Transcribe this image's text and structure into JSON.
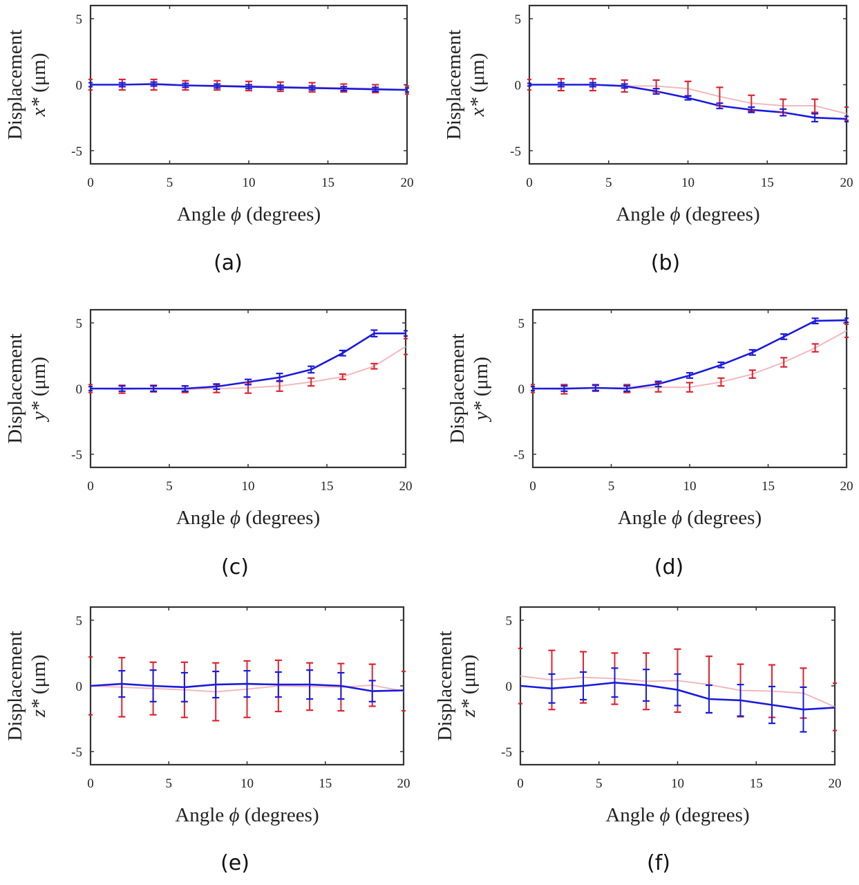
{
  "figure": {
    "colors": {
      "blue": "#1a1adb",
      "red": "#e0222e",
      "red_line": "#f2b8bc",
      "axis": "#333333"
    }
  },
  "chart_data": [
    {
      "type": "line",
      "panel_label": "(a)",
      "ylabel_top": "Displacement",
      "ylabel_var": "x*",
      "ylabel_unit": " (μm)",
      "xlabel_pre": "Angle ",
      "xlabel_sym": "ϕ",
      "xlabel_post": " (degrees)",
      "xlim": [
        0,
        20
      ],
      "ylim": [
        -6,
        6
      ],
      "xticks": [
        0,
        5,
        10,
        15,
        20
      ],
      "yticks": [
        -5,
        0,
        5
      ],
      "x": [
        0,
        2,
        4,
        6,
        8,
        10,
        12,
        14,
        16,
        18,
        20
      ],
      "series": [
        {
          "name": "blue",
          "values": [
            0,
            0,
            0.05,
            -0.05,
            -0.1,
            -0.15,
            -0.2,
            -0.25,
            -0.3,
            -0.35,
            -0.4
          ],
          "err": [
            0.15,
            0.15,
            0.15,
            0.15,
            0.15,
            0.15,
            0.15,
            0.15,
            0.15,
            0.15,
            0.15
          ]
        },
        {
          "name": "red",
          "values": [
            0,
            0,
            0,
            -0.05,
            -0.05,
            -0.1,
            -0.15,
            -0.2,
            -0.25,
            -0.3,
            -0.4
          ],
          "err": [
            0.4,
            0.4,
            0.4,
            0.35,
            0.35,
            0.35,
            0.35,
            0.35,
            0.3,
            0.3,
            0.3
          ]
        }
      ]
    },
    {
      "type": "line",
      "panel_label": "(b)",
      "ylabel_top": "Displacement",
      "ylabel_var": "x*",
      "ylabel_unit": " (μm)",
      "xlabel_pre": "Angle ",
      "xlabel_sym": "ϕ",
      "xlabel_post": " (degrees)",
      "xlim": [
        0,
        20
      ],
      "ylim": [
        -6,
        6
      ],
      "xticks": [
        0,
        5,
        10,
        15,
        20
      ],
      "yticks": [
        -5,
        0,
        5
      ],
      "x": [
        0,
        2,
        4,
        6,
        8,
        10,
        12,
        14,
        16,
        18,
        20
      ],
      "series": [
        {
          "name": "blue",
          "values": [
            0,
            0,
            0,
            -0.1,
            -0.5,
            -1.0,
            -1.6,
            -1.9,
            -2.1,
            -2.5,
            -2.6
          ],
          "err": [
            0.1,
            0.15,
            0.15,
            0.15,
            0.2,
            0.15,
            0.2,
            0.2,
            0.25,
            0.3,
            0.2
          ]
        },
        {
          "name": "red",
          "values": [
            0,
            0,
            0,
            -0.1,
            -0.1,
            -0.3,
            -0.9,
            -1.4,
            -1.6,
            -1.6,
            -2.2
          ],
          "err": [
            0.4,
            0.45,
            0.45,
            0.45,
            0.45,
            0.55,
            0.7,
            0.6,
            0.5,
            0.5,
            0.5
          ]
        }
      ]
    },
    {
      "type": "line",
      "panel_label": "(c)",
      "ylabel_top": "Displacement",
      "ylabel_var": "y*",
      "ylabel_unit": " (μm)",
      "xlabel_pre": "Angle ",
      "xlabel_sym": "ϕ",
      "xlabel_post": " (degrees)",
      "xlim": [
        0,
        20
      ],
      "ylim": [
        -6,
        6
      ],
      "xticks": [
        0,
        5,
        10,
        15,
        20
      ],
      "yticks": [
        -5,
        0,
        5
      ],
      "x": [
        0,
        2,
        4,
        6,
        8,
        10,
        12,
        14,
        16,
        18,
        20
      ],
      "series": [
        {
          "name": "blue",
          "values": [
            0,
            0,
            0,
            0,
            0.15,
            0.5,
            0.85,
            1.45,
            2.7,
            4.2,
            4.2
          ],
          "err": [
            0.15,
            0.2,
            0.2,
            0.2,
            0.2,
            0.2,
            0.3,
            0.25,
            0.2,
            0.25,
            0.2
          ]
        },
        {
          "name": "red",
          "values": [
            0,
            -0.05,
            0,
            -0.05,
            0,
            0.05,
            0.2,
            0.5,
            0.9,
            1.7,
            3.2
          ],
          "err": [
            0.3,
            0.3,
            0.25,
            0.25,
            0.3,
            0.4,
            0.4,
            0.3,
            0.2,
            0.2,
            0.6
          ]
        }
      ]
    },
    {
      "type": "line",
      "panel_label": "(d)",
      "ylabel_top": "Displacement",
      "ylabel_var": "y*",
      "ylabel_unit": " (μm)",
      "xlabel_pre": "Angle ",
      "xlabel_sym": "ϕ",
      "xlabel_post": " (degrees)",
      "xlim": [
        0,
        20
      ],
      "ylim": [
        -6,
        6
      ],
      "xticks": [
        0,
        5,
        10,
        15,
        20
      ],
      "yticks": [
        -5,
        0,
        5
      ],
      "x": [
        0,
        2,
        4,
        6,
        8,
        10,
        12,
        14,
        16,
        18,
        20
      ],
      "series": [
        {
          "name": "blue",
          "values": [
            0,
            0,
            0.05,
            0,
            0.35,
            1.0,
            1.8,
            2.75,
            3.95,
            5.15,
            5.2
          ],
          "err": [
            0.15,
            0.2,
            0.2,
            0.2,
            0.2,
            0.2,
            0.2,
            0.2,
            0.2,
            0.2,
            0.15
          ]
        },
        {
          "name": "red",
          "values": [
            0,
            -0.05,
            0.05,
            0,
            0.1,
            0.1,
            0.5,
            1.1,
            2.0,
            3.1,
            4.4
          ],
          "err": [
            0.3,
            0.35,
            0.25,
            0.3,
            0.35,
            0.35,
            0.3,
            0.3,
            0.35,
            0.3,
            0.5
          ]
        }
      ]
    },
    {
      "type": "line",
      "panel_label": "(e)",
      "ylabel_top": "Displacement",
      "ylabel_var": "z*",
      "ylabel_unit": " (μm)",
      "xlabel_pre": "Angle ",
      "xlabel_sym": "ϕ",
      "xlabel_post": " (degrees)",
      "xlim": [
        0,
        20
      ],
      "ylim": [
        -6,
        6
      ],
      "xticks": [
        0,
        5,
        10,
        15,
        20
      ],
      "yticks": [
        -5,
        0,
        5
      ],
      "x": [
        0,
        2,
        4,
        6,
        8,
        10,
        12,
        14,
        16,
        18,
        20
      ],
      "series": [
        {
          "name": "blue",
          "values": [
            0,
            0.15,
            0,
            -0.1,
            0.1,
            0.15,
            0.1,
            0.1,
            0,
            -0.4,
            -0.35
          ],
          "err": [
            0,
            1.0,
            1.2,
            1.1,
            1.0,
            1.0,
            0.95,
            1.1,
            1.0,
            0.8,
            0
          ]
        },
        {
          "name": "red",
          "values": [
            0,
            -0.1,
            -0.2,
            -0.3,
            -0.45,
            -0.25,
            0,
            -0.05,
            -0.1,
            0.05,
            -0.4
          ],
          "err": [
            2.2,
            2.25,
            2.0,
            2.1,
            2.2,
            2.15,
            1.95,
            1.8,
            1.8,
            1.6,
            1.5
          ]
        }
      ]
    },
    {
      "type": "line",
      "panel_label": "(f)",
      "ylabel_top": "Displacement",
      "ylabel_var": "z*",
      "ylabel_unit": " (μm)",
      "xlabel_pre": "Angle ",
      "xlabel_sym": "ϕ",
      "xlabel_post": " (degrees)",
      "xlim": [
        0,
        20
      ],
      "ylim": [
        -6,
        6
      ],
      "xticks": [
        0,
        5,
        10,
        15,
        20
      ],
      "yticks": [
        -5,
        0,
        5
      ],
      "x": [
        0,
        2,
        4,
        6,
        8,
        10,
        12,
        14,
        16,
        18,
        20
      ],
      "series": [
        {
          "name": "blue",
          "values": [
            0,
            -0.2,
            0,
            0.25,
            0.05,
            -0.3,
            -1.0,
            -1.1,
            -1.45,
            -1.8,
            -1.65
          ],
          "err": [
            0,
            1.1,
            1.05,
            1.1,
            1.2,
            1.2,
            1.05,
            1.2,
            1.4,
            1.7,
            0
          ]
        },
        {
          "name": "red",
          "values": [
            0.75,
            0.45,
            0.65,
            0.55,
            0.35,
            0.4,
            0.1,
            -0.35,
            -0.4,
            -0.55,
            -1.6
          ],
          "err": [
            2.1,
            2.25,
            1.95,
            1.95,
            2.15,
            2.4,
            2.15,
            2.0,
            2.0,
            1.9,
            1.8
          ]
        }
      ]
    }
  ]
}
